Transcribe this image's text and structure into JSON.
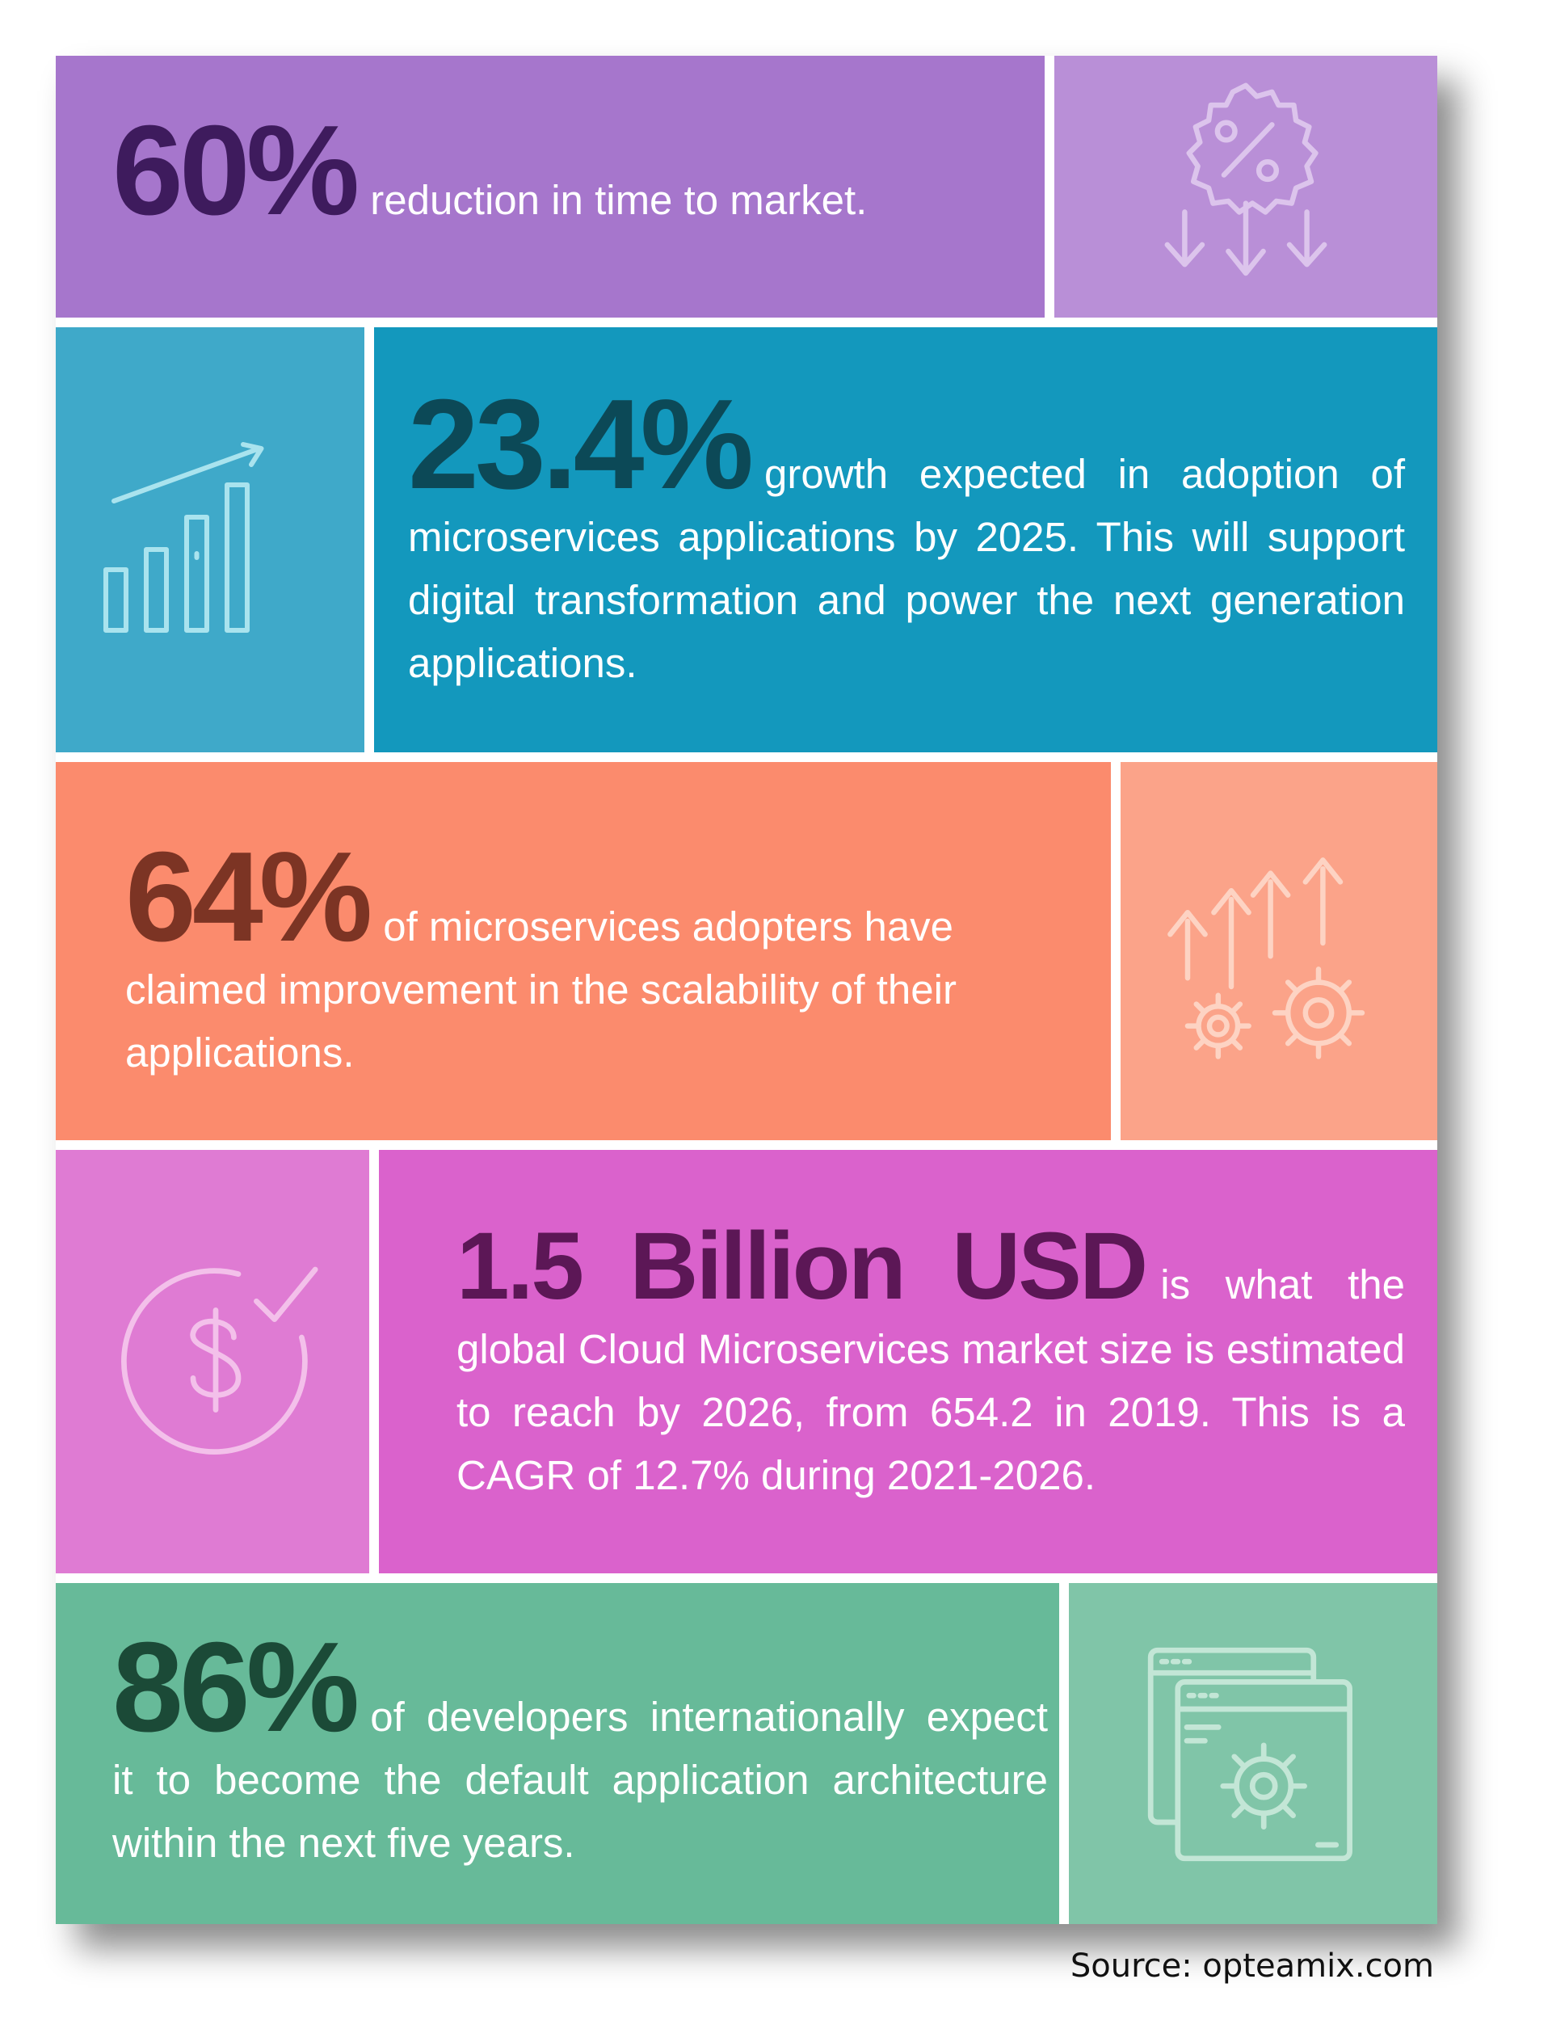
{
  "colors": {
    "purple": "#a676cc",
    "purple_light": "#b98fd7",
    "purple_dark": "#3e1b5d",
    "teal": "#1398bd",
    "teal_light": "#3fa9c9",
    "teal_dark": "#0c4957",
    "orange": "#fb8b6d",
    "orange_light": "#fba389",
    "orange_dark": "#7c3424",
    "magenta": "#da62cc",
    "magenta_light": "#df7bd3",
    "magenta_dark": "#5c1756",
    "green": "#67ba99",
    "green_light": "#80c5a8",
    "green_dark": "#1b4a37"
  },
  "stats": [
    {
      "value": "60%",
      "text": "reduction in time to market.",
      "icon": "percent-badge-down-arrows-icon"
    },
    {
      "value": "23.4%",
      "text": "growth expected in adoption of microservices applications by 2025. This will support digital transformation and power the next generation applications.",
      "icon": "bar-chart-growth-icon"
    },
    {
      "value": "64%",
      "text": "of microservices adopters have claimed improvement in the scalability of their applications.",
      "icon": "gears-up-arrows-icon"
    },
    {
      "value": "1.5 Billion USD",
      "text": "is what the global Cloud Microservices market size is estimated to reach by 2026, from 654.2  in 2019. This is a CAGR of 12.7% during 2021-2026.",
      "icon": "dollar-refresh-icon"
    },
    {
      "value": "86%",
      "text": "of developers internationally expect it to become the default application architecture within the next five years.",
      "icon": "browser-window-gear-icon"
    }
  ],
  "source": "Source: opteamix.com"
}
